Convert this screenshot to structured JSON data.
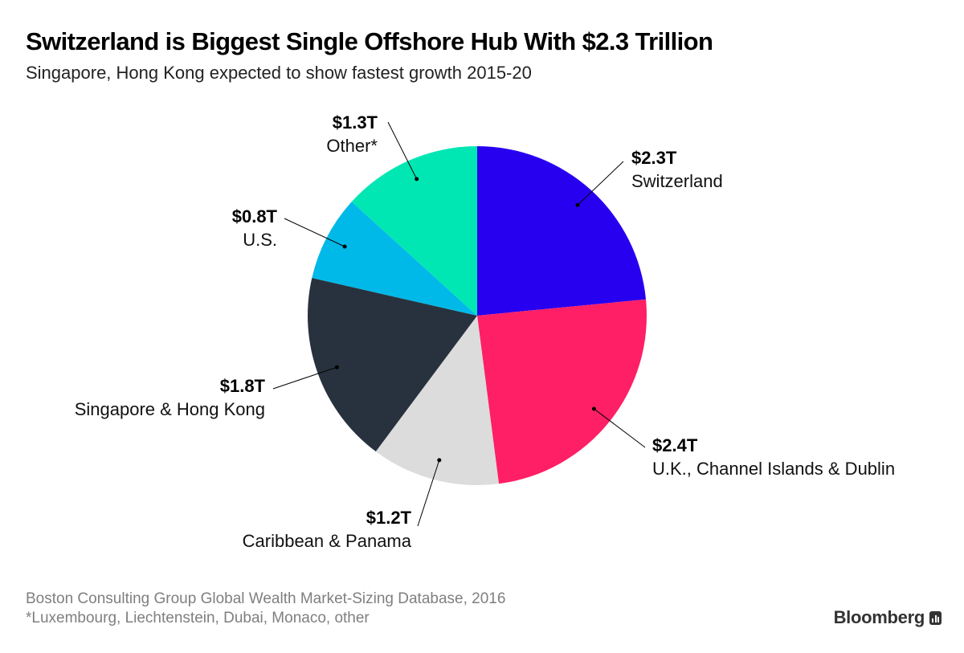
{
  "chart_data": {
    "type": "pie",
    "title": "Switzerland is Biggest Single Offshore Hub With $2.3 Trillion",
    "subtitle": "Singapore, Hong Kong expected to show fastest growth 2015-20",
    "slices": [
      {
        "name": "Switzerland",
        "label": "$2.3T",
        "value": 2.3,
        "color": "#2800f0"
      },
      {
        "name": "U.K., Channel Islands & Dublin",
        "label": "$2.4T",
        "value": 2.4,
        "color": "#ff1f66"
      },
      {
        "name": "Caribbean & Panama",
        "label": "$1.2T",
        "value": 1.2,
        "color": "#dcdcdc"
      },
      {
        "name": "Singapore & Hong Kong",
        "label": "$1.8T",
        "value": 1.8,
        "color": "#28323e"
      },
      {
        "name": "U.S.",
        "label": "$0.8T",
        "value": 0.8,
        "color": "#00b9e8"
      },
      {
        "name": "Other*",
        "label": "$1.3T",
        "value": 1.3,
        "color": "#00e7b4"
      }
    ],
    "legend": "none"
  },
  "footer": {
    "source": "Boston Consulting Group Global Wealth Market-Sizing Database, 2016",
    "note": "*Luxembourg, Liechtenstein, Dubai, Monaco, other",
    "brand": "Bloomberg"
  }
}
